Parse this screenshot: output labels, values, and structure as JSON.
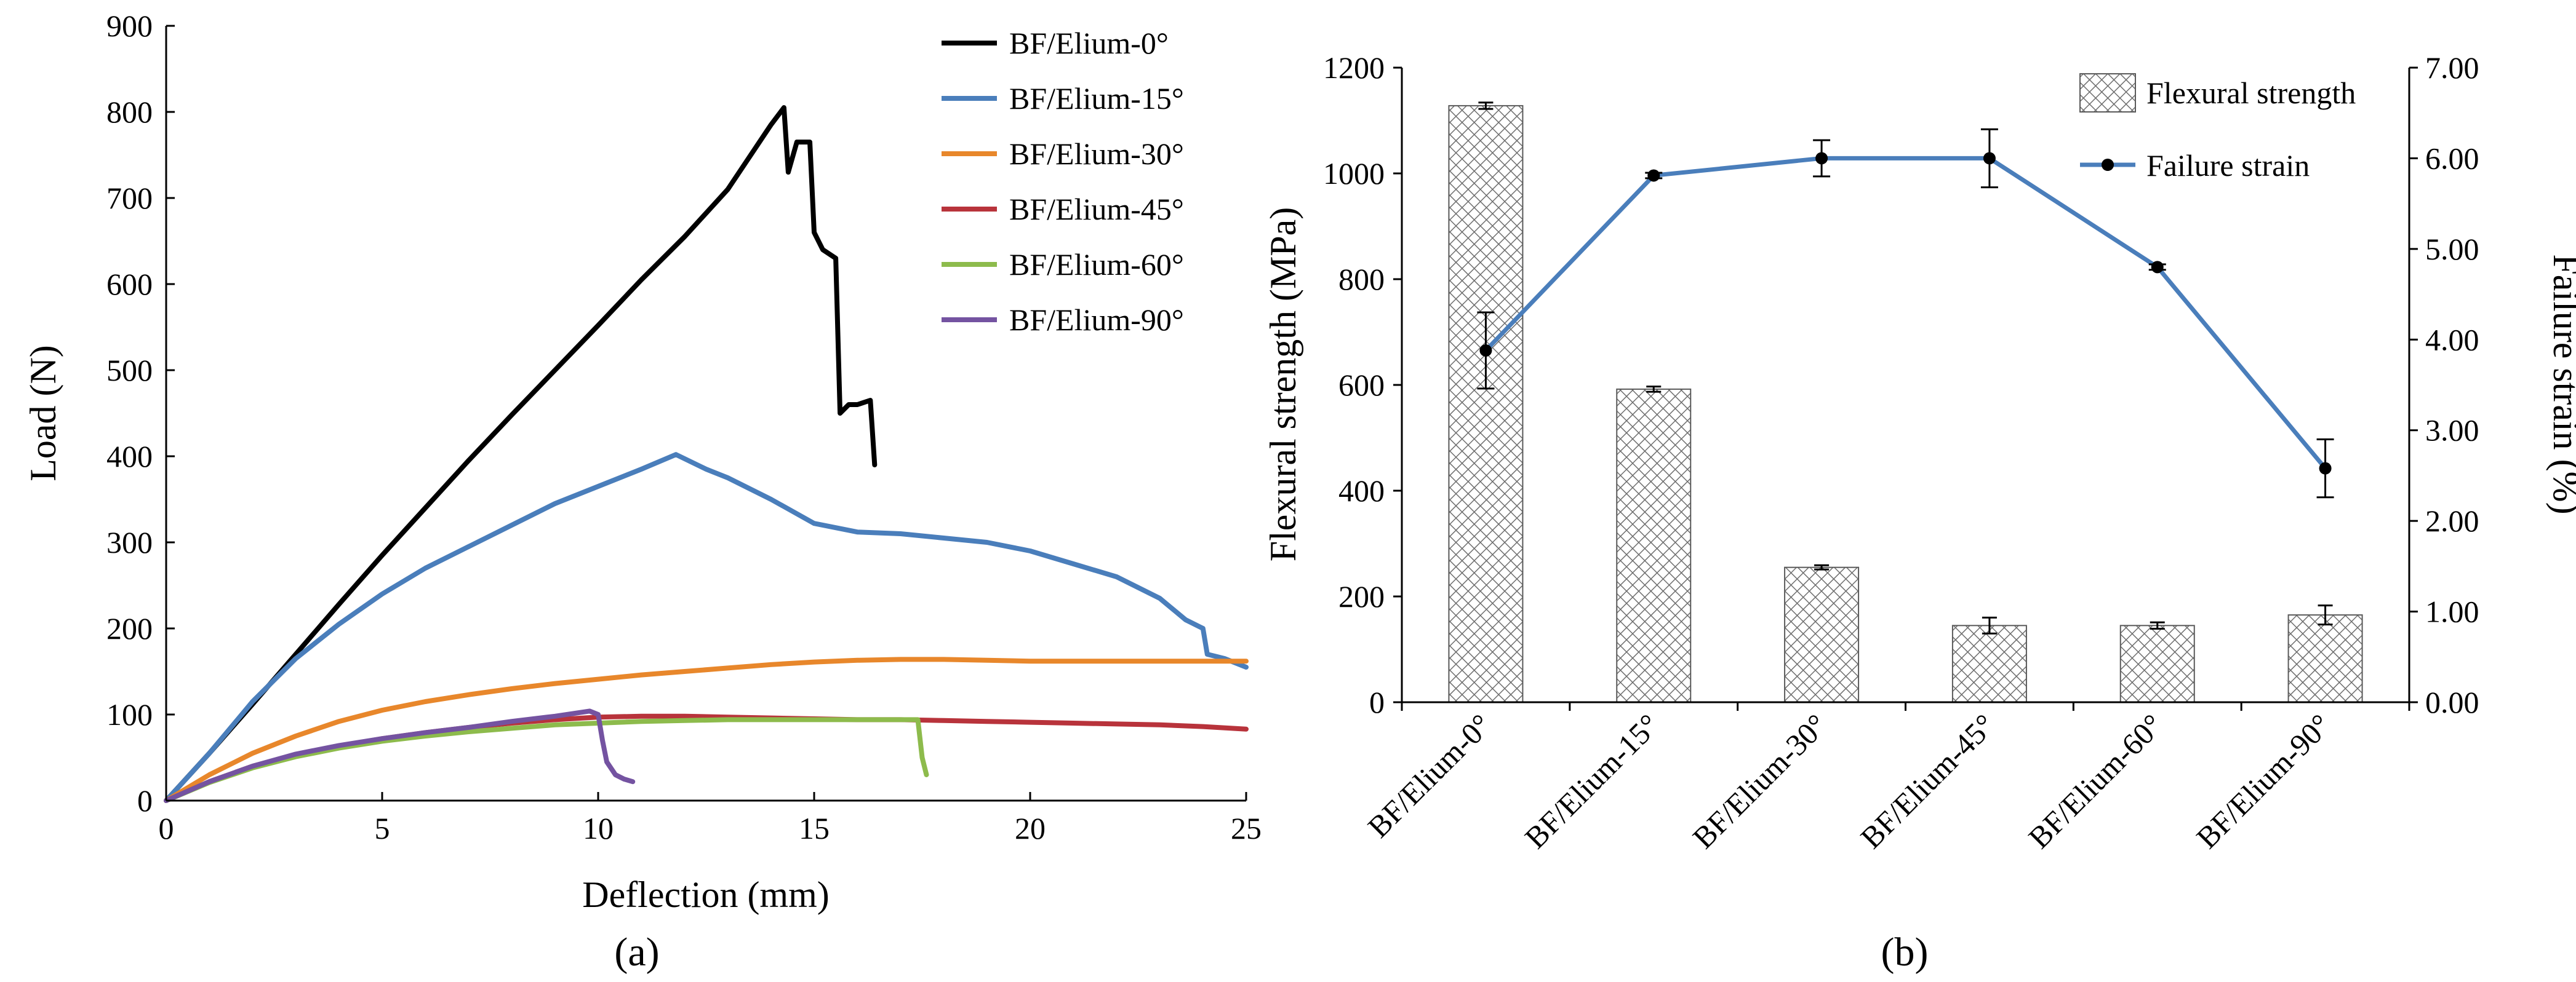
{
  "chart_data": [
    {
      "type": "line",
      "panel_label": "(a)",
      "xlabel": "Deflection (mm)",
      "ylabel": "Load (N)",
      "xlim": [
        0,
        25
      ],
      "ylim": [
        0,
        900
      ],
      "x_ticks": [
        "0",
        "5",
        "10",
        "15",
        "20",
        "25"
      ],
      "y_ticks": [
        "0",
        "100",
        "200",
        "300",
        "400",
        "500",
        "600",
        "700",
        "800",
        "900"
      ],
      "grid": false,
      "legend_position": "top-right",
      "series": [
        {
          "name": "BF/Elium-0°",
          "color": "#000000",
          "points": [
            [
              0,
              0
            ],
            [
              1,
              55
            ],
            [
              2,
              112
            ],
            [
              3,
              170
            ],
            [
              4,
              228
            ],
            [
              5,
              285
            ],
            [
              6,
              340
            ],
            [
              7,
              395
            ],
            [
              8,
              448
            ],
            [
              9,
              500
            ],
            [
              10,
              552
            ],
            [
              11,
              605
            ],
            [
              12,
              655
            ],
            [
              13,
              710
            ],
            [
              14,
              785
            ],
            [
              14.3,
              805
            ],
            [
              14.4,
              730
            ],
            [
              14.6,
              765
            ],
            [
              14.9,
              765
            ],
            [
              15.0,
              660
            ],
            [
              15.2,
              640
            ],
            [
              15.5,
              630
            ],
            [
              15.6,
              450
            ],
            [
              15.8,
              460
            ],
            [
              16.0,
              460
            ],
            [
              16.3,
              465
            ],
            [
              16.4,
              390
            ]
          ]
        },
        {
          "name": "BF/Elium-15°",
          "color": "#4a7ebb",
          "points": [
            [
              0,
              0
            ],
            [
              1,
              55
            ],
            [
              2,
              115
            ],
            [
              3,
              165
            ],
            [
              4,
              205
            ],
            [
              5,
              240
            ],
            [
              6,
              270
            ],
            [
              7,
              295
            ],
            [
              8,
              320
            ],
            [
              9,
              345
            ],
            [
              10,
              365
            ],
            [
              11,
              385
            ],
            [
              11.8,
              402
            ],
            [
              12.5,
              385
            ],
            [
              13,
              375
            ],
            [
              14,
              350
            ],
            [
              15,
              322
            ],
            [
              16,
              312
            ],
            [
              17,
              310
            ],
            [
              18,
              305
            ],
            [
              19,
              300
            ],
            [
              20,
              290
            ],
            [
              21,
              275
            ],
            [
              22,
              260
            ],
            [
              23,
              235
            ],
            [
              23.6,
              210
            ],
            [
              24,
              200
            ],
            [
              24.1,
              170
            ],
            [
              24.5,
              165
            ],
            [
              25,
              155
            ]
          ]
        },
        {
          "name": "BF/Elium-30°",
          "color": "#e8872b",
          "points": [
            [
              0,
              0
            ],
            [
              1,
              30
            ],
            [
              2,
              55
            ],
            [
              3,
              75
            ],
            [
              4,
              92
            ],
            [
              5,
              105
            ],
            [
              6,
              115
            ],
            [
              7,
              123
            ],
            [
              8,
              130
            ],
            [
              9,
              136
            ],
            [
              10,
              141
            ],
            [
              11,
              146
            ],
            [
              12,
              150
            ],
            [
              13,
              154
            ],
            [
              14,
              158
            ],
            [
              15,
              161
            ],
            [
              16,
              163
            ],
            [
              17,
              164
            ],
            [
              18,
              164
            ],
            [
              19,
              163
            ],
            [
              20,
              162
            ],
            [
              21,
              162
            ],
            [
              22,
              162
            ],
            [
              23,
              162
            ],
            [
              24,
              162
            ],
            [
              25,
              162
            ]
          ]
        },
        {
          "name": "BF/Elium-45°",
          "color": "#b8333b",
          "points": [
            [
              0,
              0
            ],
            [
              1,
              22
            ],
            [
              2,
              40
            ],
            [
              3,
              53
            ],
            [
              4,
              63
            ],
            [
              5,
              72
            ],
            [
              6,
              79
            ],
            [
              7,
              85
            ],
            [
              8,
              90
            ],
            [
              9,
              94
            ],
            [
              10,
              97
            ],
            [
              11,
              98
            ],
            [
              12,
              98
            ],
            [
              13,
              97
            ],
            [
              14,
              96
            ],
            [
              15,
              95
            ],
            [
              16,
              94
            ],
            [
              17,
              94
            ],
            [
              18,
              93
            ],
            [
              19,
              92
            ],
            [
              20,
              91
            ],
            [
              21,
              90
            ],
            [
              22,
              89
            ],
            [
              23,
              88
            ],
            [
              24,
              86
            ],
            [
              25,
              83
            ]
          ]
        },
        {
          "name": "BF/Elium-60°",
          "color": "#8dbb4c",
          "points": [
            [
              0,
              0
            ],
            [
              1,
              21
            ],
            [
              2,
              38
            ],
            [
              3,
              51
            ],
            [
              4,
              61
            ],
            [
              5,
              69
            ],
            [
              6,
              75
            ],
            [
              7,
              80
            ],
            [
              8,
              84
            ],
            [
              9,
              88
            ],
            [
              10,
              90
            ],
            [
              11,
              92
            ],
            [
              12,
              93
            ],
            [
              13,
              94
            ],
            [
              14,
              94
            ],
            [
              15,
              94
            ],
            [
              16,
              94
            ],
            [
              17,
              94
            ],
            [
              17.4,
              94
            ],
            [
              17.5,
              50
            ],
            [
              17.6,
              30
            ]
          ]
        },
        {
          "name": "BF/Elium-90°",
          "color": "#7453a1",
          "points": [
            [
              0,
              0
            ],
            [
              1,
              22
            ],
            [
              2,
              40
            ],
            [
              3,
              54
            ],
            [
              4,
              64
            ],
            [
              5,
              72
            ],
            [
              6,
              79
            ],
            [
              7,
              85
            ],
            [
              8,
              92
            ],
            [
              9,
              98
            ],
            [
              9.8,
              104
            ],
            [
              10.0,
              100
            ],
            [
              10.1,
              70
            ],
            [
              10.2,
              45
            ],
            [
              10.4,
              30
            ],
            [
              10.6,
              25
            ],
            [
              10.8,
              22
            ]
          ]
        }
      ]
    },
    {
      "type": "bar",
      "panel_label": "(b)",
      "categories": [
        "BF/Elium-0°",
        "BF/Elium-15°",
        "BF/Elium-30°",
        "BF/Elium-45°",
        "BF/Elium-60°",
        "BF/Elium-90°"
      ],
      "ylabel": "Flexural strength (MPa)",
      "y2label": "Failure strain (%)",
      "ylim": [
        0,
        1200
      ],
      "y2lim": [
        0,
        7
      ],
      "y_ticks": [
        "0",
        "200",
        "400",
        "600",
        "800",
        "1000",
        "1200"
      ],
      "y2_ticks": [
        "0.00",
        "1.00",
        "2.00",
        "3.00",
        "4.00",
        "5.00",
        "6.00",
        "7.00"
      ],
      "grid": false,
      "legend_position": "top-right",
      "series": [
        {
          "name": "Flexural strength",
          "type": "bar",
          "axis": "left",
          "values": [
            1128,
            592,
            255,
            145,
            145,
            165
          ],
          "errors": [
            6,
            5,
            4,
            15,
            6,
            18
          ]
        },
        {
          "name": "Failure strain",
          "type": "line",
          "axis": "right",
          "color": "#4a7ebb",
          "values": [
            3.88,
            5.81,
            6.0,
            6.0,
            4.8,
            2.58
          ],
          "errors": [
            0.42,
            0.03,
            0.2,
            0.32,
            0.03,
            0.32
          ]
        }
      ]
    }
  ]
}
